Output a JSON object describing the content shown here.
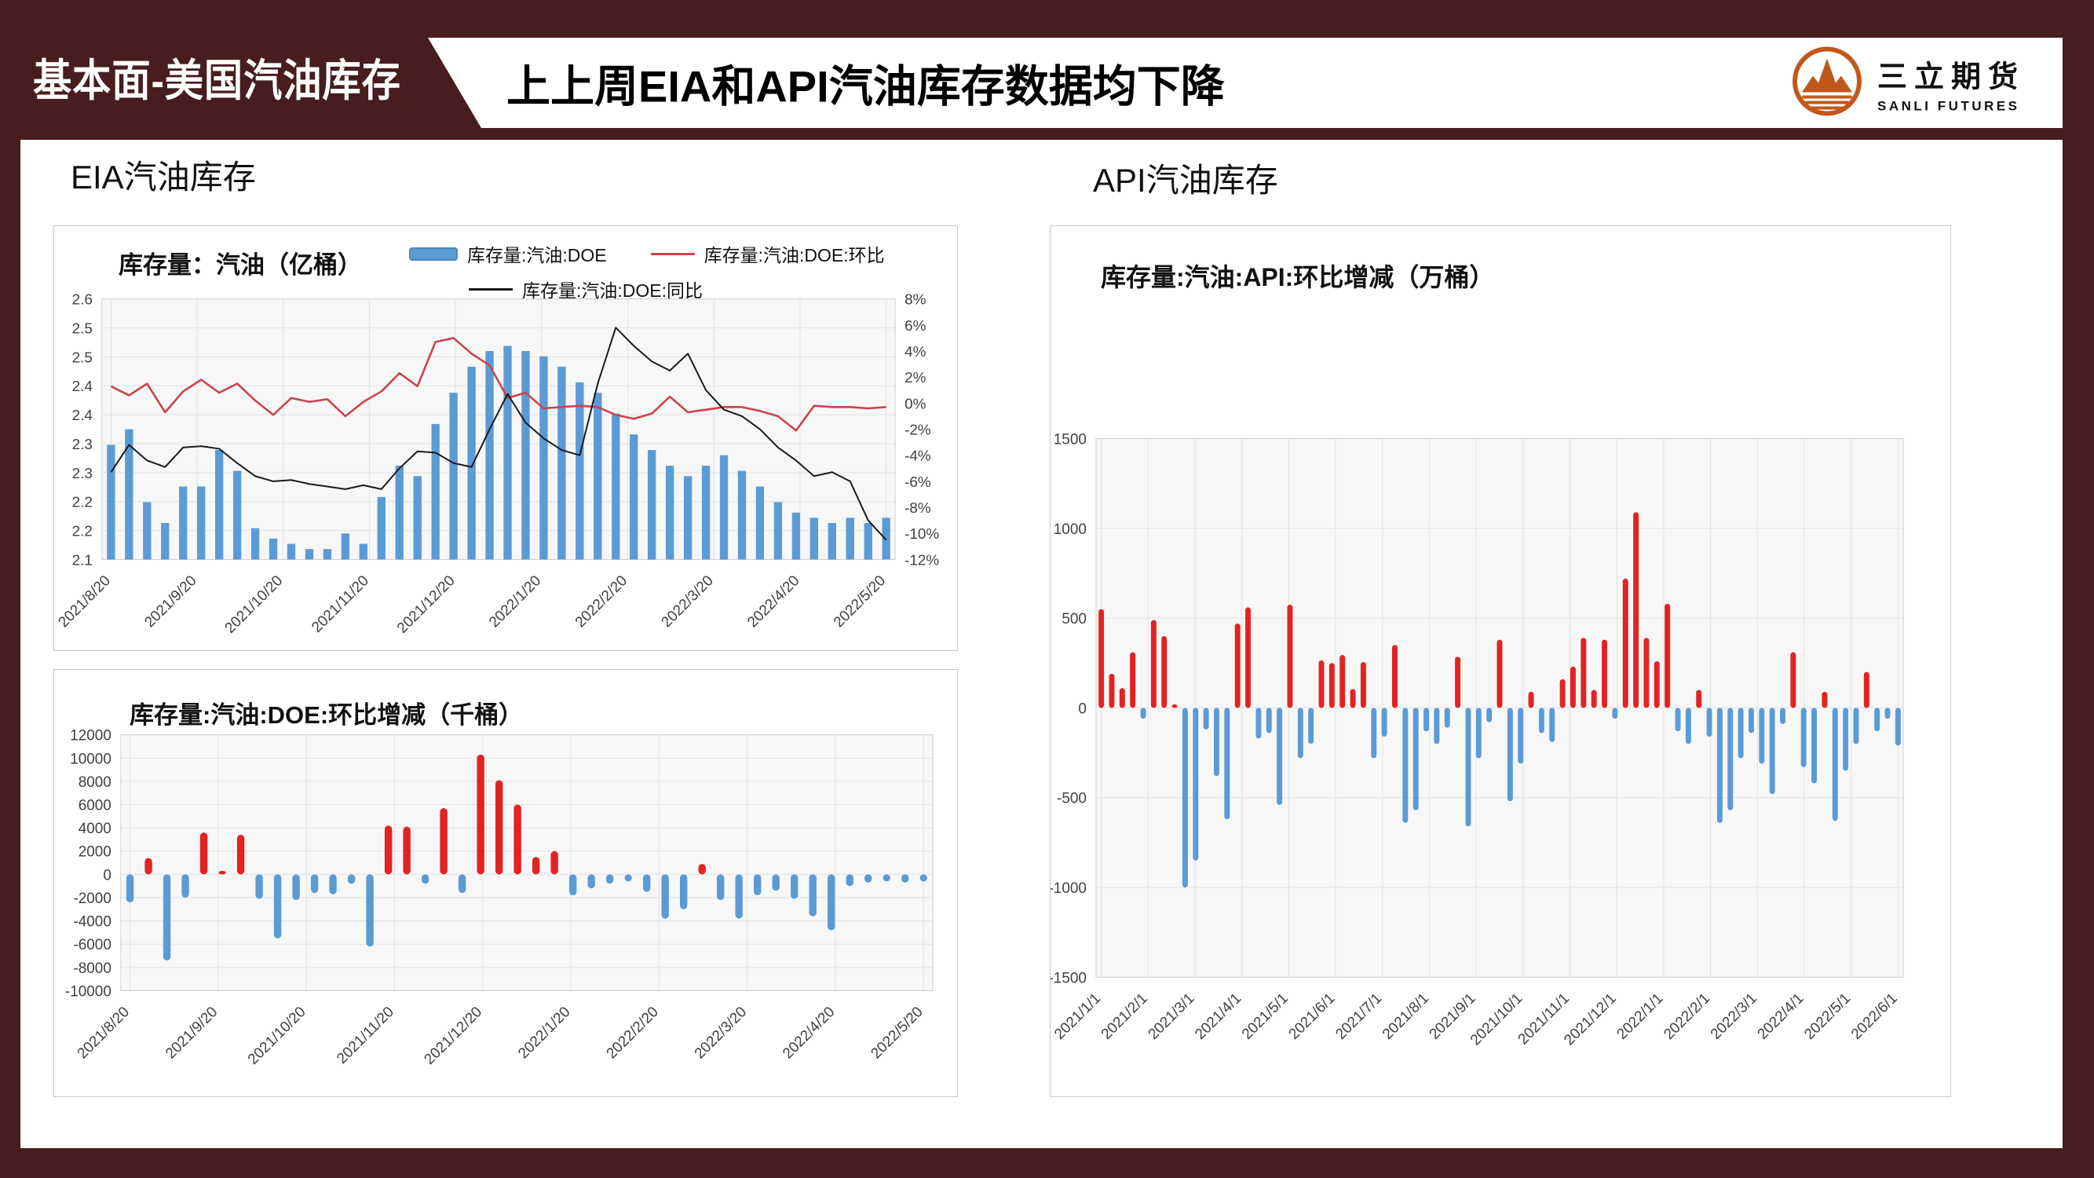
{
  "header": {
    "section_label": "基本面-美国汽油库存",
    "headline": "上上周EIA和API汽油库存数据均下降",
    "brand": {
      "name_cn": "三立期货",
      "name_en": "SANLI FUTURES",
      "logo_color": "#C2571A"
    }
  },
  "sections": {
    "eia": {
      "title": "EIA汽油库存"
    },
    "api": {
      "title": "API汽油库存"
    }
  },
  "colors": {
    "frame_maroon": "#471D1D",
    "bar_blue": "#5B9BD5",
    "bar_red": "#E32222",
    "line_red": "#C9444D",
    "line_black": "#1A1A1A",
    "plot_bg": "#F7F7F7",
    "grid": "#E2E2E2"
  },
  "chart_data": [
    {
      "id": "eia-inventory",
      "type": "bar+line",
      "title": "库存量：汽油（亿桶）",
      "legend": [
        {
          "label": "库存量:汽油:DOE",
          "type": "bar",
          "color": "#5B9BD5"
        },
        {
          "label": "库存量:汽油:DOE:环比",
          "type": "line",
          "color": "#C9444D"
        },
        {
          "label": "库存量:汽油:DOE:同比",
          "type": "line",
          "color": "#1A1A1A"
        }
      ],
      "x_start": "2021/8/20",
      "x_interval": "weekly",
      "x_tick_labels": [
        "2021/8/20",
        "2021/9/20",
        "2021/10/20",
        "2021/11/20",
        "2021/12/20",
        "2022/1/20",
        "2022/2/20",
        "2022/3/20",
        "2022/4/20",
        "2022/5/20"
      ],
      "left_axis": {
        "range": [
          2.1,
          2.6
        ],
        "tick_labels": [
          "2.6",
          "2.5",
          "2.5",
          "2.4",
          "2.4",
          "2.3",
          "2.3",
          "2.2",
          "2.2",
          "2.1"
        ]
      },
      "right_axis": {
        "range": [
          -12,
          8
        ],
        "tick_labels": [
          "8%",
          "6%",
          "4%",
          "2%",
          "0%",
          "-2%",
          "-4%",
          "-6%",
          "-8%",
          "-10%",
          "-12%"
        ]
      },
      "series": [
        {
          "name": "库存量:汽油:DOE",
          "type": "bar",
          "axis": "left",
          "color": "#5B9BD5",
          "values": [
            2.32,
            2.35,
            2.21,
            2.17,
            2.24,
            2.24,
            2.31,
            2.27,
            2.16,
            2.14,
            2.13,
            2.12,
            2.12,
            2.15,
            2.13,
            2.22,
            2.28,
            2.26,
            2.36,
            2.42,
            2.47,
            2.5,
            2.51,
            2.5,
            2.49,
            2.47,
            2.44,
            2.42,
            2.38,
            2.34,
            2.31,
            2.28,
            2.26,
            2.28,
            2.3,
            2.27,
            2.24,
            2.21,
            2.19,
            2.18,
            2.17,
            2.18,
            2.17,
            2.18
          ]
        },
        {
          "name": "库存量:汽油:DOE:环比",
          "type": "line",
          "axis": "right",
          "color": "#C9444D",
          "values": [
            1.3,
            0.6,
            1.5,
            -0.7,
            0.9,
            1.8,
            0.8,
            1.5,
            0.2,
            -0.9,
            0.4,
            0.1,
            0.3,
            -1.0,
            0.1,
            0.9,
            2.3,
            1.3,
            4.7,
            5.0,
            3.8,
            2.9,
            0.4,
            0.8,
            -0.4,
            -0.3,
            -0.2,
            -0.3,
            -0.9,
            -1.2,
            -0.8,
            0.5,
            -0.7,
            -0.5,
            -0.3,
            -0.3,
            -0.6,
            -1.0,
            -2.1,
            -0.2,
            -0.3,
            -0.3,
            -0.4,
            -0.3
          ]
        },
        {
          "name": "库存量:汽油:DOE:同比",
          "type": "line",
          "axis": "right",
          "color": "#1A1A1A",
          "values": [
            -5.3,
            -3.2,
            -4.4,
            -4.9,
            -3.4,
            -3.3,
            -3.5,
            -4.6,
            -5.6,
            -6.0,
            -5.9,
            -6.2,
            -6.4,
            -6.6,
            -6.3,
            -6.6,
            -5.0,
            -3.7,
            -3.8,
            -4.6,
            -4.9,
            -2.0,
            0.7,
            -1.5,
            -2.7,
            -3.6,
            -4.0,
            1.5,
            5.8,
            4.4,
            3.2,
            2.5,
            3.8,
            1.0,
            -0.5,
            -1.0,
            -2.0,
            -3.4,
            -4.4,
            -5.6,
            -5.3,
            -6.0,
            -9.0,
            -10.5
          ]
        }
      ]
    },
    {
      "id": "doe-wow-change",
      "type": "bar",
      "title": "库存量:汽油:DOE:环比增减（千桶）",
      "x_start": "2021/8/20",
      "x_interval": "weekly",
      "x_tick_labels": [
        "2021/8/20",
        "2021/9/20",
        "2021/10/20",
        "2021/11/20",
        "2021/12/20",
        "2022/1/20",
        "2022/2/20",
        "2022/3/20",
        "2022/4/20",
        "2022/5/20"
      ],
      "y_axis": {
        "range": [
          -10000,
          12000
        ],
        "tick_labels": [
          "12000",
          "10000",
          "8000",
          "6000",
          "4000",
          "2000",
          "0",
          "-2000",
          "-4000",
          "-6000",
          "-8000",
          "-10000"
        ]
      },
      "positive_color": "#E32222",
      "negative_color": "#5B9BD5",
      "values": [
        -2400,
        1400,
        -7400,
        -2000,
        3600,
        300,
        3400,
        -2100,
        -5500,
        -2200,
        -1600,
        -1700,
        -800,
        -6200,
        4200,
        4100,
        -800,
        5700,
        -1600,
        10300,
        8100,
        6000,
        1500,
        2000,
        -1800,
        -1200,
        -800,
        -600,
        -1500,
        -3800,
        -3000,
        900,
        -2200,
        -3800,
        -1800,
        -1400,
        -2100,
        -3600,
        -4800,
        -1000,
        -700,
        -600,
        -700,
        -600
      ]
    },
    {
      "id": "api-wow-change",
      "type": "bar",
      "title": "库存量:汽油:API:环比增减（万桶）",
      "x_start": "2021/1/1",
      "x_interval": "weekly",
      "x_tick_labels": [
        "2021/1/1",
        "2021/2/1",
        "2021/3/1",
        "2021/4/1",
        "2021/5/1",
        "2021/6/1",
        "2021/7/1",
        "2021/8/1",
        "2021/9/1",
        "2021/10/1",
        "2021/11/1",
        "2021/12/1",
        "2022/1/1",
        "2022/2/1",
        "2022/3/1",
        "2022/4/1",
        "2022/5/1",
        "2022/6/1"
      ],
      "y_axis": {
        "range": [
          -1500,
          1500
        ],
        "tick_labels": [
          "1500",
          "1000",
          "500",
          "0",
          "-500",
          "-1000",
          "-1500"
        ]
      },
      "positive_color": "#E32222",
      "negative_color": "#5B9BD5",
      "values": [
        550,
        190,
        110,
        310,
        -60,
        490,
        400,
        20,
        -1000,
        -850,
        -120,
        -380,
        -620,
        470,
        560,
        -170,
        -140,
        -540,
        575,
        -280,
        -200,
        265,
        250,
        295,
        105,
        255,
        -280,
        -160,
        350,
        -640,
        -570,
        -130,
        -200,
        -110,
        285,
        -660,
        -280,
        -80,
        380,
        -520,
        -310,
        90,
        -140,
        -190,
        160,
        230,
        390,
        100,
        380,
        -60,
        720,
        1090,
        390,
        260,
        580,
        -130,
        -200,
        100,
        -160,
        -640,
        -570,
        -280,
        -140,
        -310,
        -480,
        -90,
        310,
        -330,
        -420,
        90,
        -630,
        -350,
        -200,
        200,
        -130,
        -60,
        -210
      ]
    }
  ]
}
